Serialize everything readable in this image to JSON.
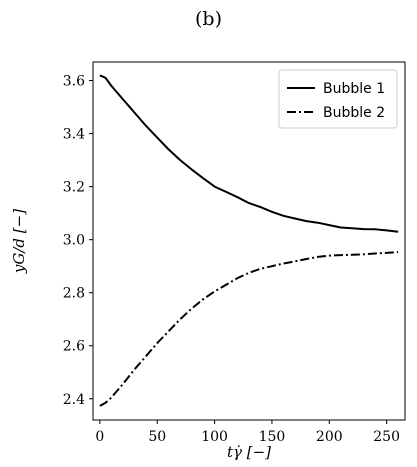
{
  "panel_label": "(b)",
  "chart_data": {
    "type": "line",
    "xlabel": "tγ̇ [−]",
    "ylabel": "yG/d [−]",
    "xlim": [
      -6,
      266
    ],
    "ylim": [
      2.32,
      3.67
    ],
    "xticks": [
      0,
      50,
      100,
      150,
      200,
      250
    ],
    "xtick_labels": [
      "0",
      "50",
      "100",
      "150",
      "200",
      "250"
    ],
    "yticks": [
      2.4,
      2.6,
      2.8,
      3.0,
      3.2,
      3.4,
      3.6
    ],
    "ytick_labels": [
      "2.4",
      "2.6",
      "2.8",
      "3.0",
      "3.2",
      "3.4",
      "3.6"
    ],
    "grid": false,
    "legend_position": "top-right",
    "series": [
      {
        "name": "Bubble 1",
        "style": "solid",
        "color": "#000000",
        "x": [
          0,
          5,
          10,
          20,
          30,
          40,
          50,
          60,
          70,
          80,
          90,
          100,
          110,
          120,
          130,
          140,
          150,
          160,
          170,
          180,
          190,
          200,
          210,
          220,
          230,
          240,
          250,
          260
        ],
        "y": [
          3.62,
          3.61,
          3.58,
          3.53,
          3.48,
          3.43,
          3.385,
          3.34,
          3.3,
          3.265,
          3.232,
          3.2,
          3.18,
          3.16,
          3.138,
          3.123,
          3.105,
          3.09,
          3.08,
          3.07,
          3.064,
          3.055,
          3.046,
          3.043,
          3.04,
          3.039,
          3.035,
          3.03
        ]
      },
      {
        "name": "Bubble 2",
        "style": "dashdot",
        "color": "#000000",
        "x": [
          0,
          5,
          10,
          20,
          30,
          40,
          50,
          60,
          70,
          80,
          90,
          100,
          110,
          120,
          130,
          140,
          150,
          160,
          170,
          180,
          190,
          200,
          210,
          220,
          230,
          240,
          250,
          260
        ],
        "y": [
          2.373,
          2.385,
          2.405,
          2.455,
          2.51,
          2.56,
          2.61,
          2.655,
          2.7,
          2.74,
          2.775,
          2.805,
          2.83,
          2.855,
          2.875,
          2.89,
          2.9,
          2.91,
          2.918,
          2.927,
          2.935,
          2.94,
          2.942,
          2.943,
          2.945,
          2.948,
          2.95,
          2.953
        ]
      }
    ]
  }
}
